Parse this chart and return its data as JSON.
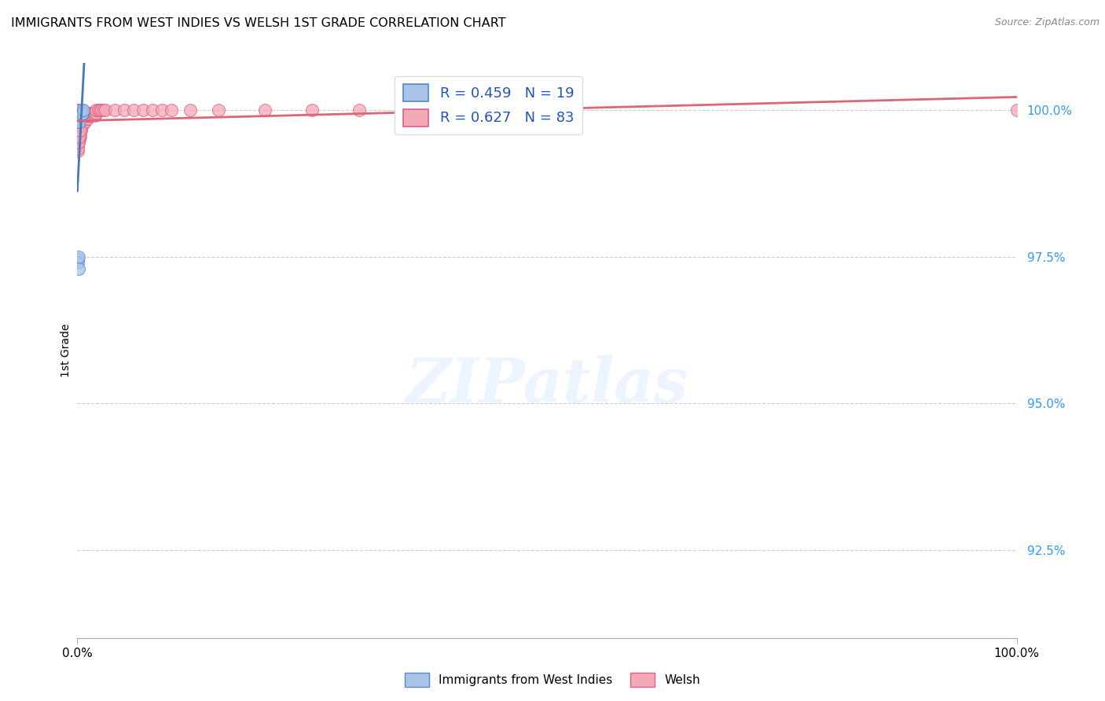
{
  "title": "IMMIGRANTS FROM WEST INDIES VS WELSH 1ST GRADE CORRELATION CHART",
  "source": "Source: ZipAtlas.com",
  "ylabel": "1st Grade",
  "ytick_vals": [
    100.0,
    97.5,
    95.0,
    92.5
  ],
  "ytick_labels": [
    "100.0%",
    "97.5%",
    "95.0%",
    "92.5%"
  ],
  "xlim": [
    0.0,
    100.0
  ],
  "ylim": [
    91.0,
    100.8
  ],
  "blue_R": 0.459,
  "blue_N": 19,
  "pink_R": 0.627,
  "pink_N": 83,
  "blue_fill": "#aac4e8",
  "pink_fill": "#f4a8b8",
  "blue_edge": "#5588cc",
  "pink_edge": "#e06080",
  "blue_line": "#4477bb",
  "pink_line": "#dd6677",
  "marker_size": 130,
  "blue_x": [
    0.05,
    0.08,
    0.12,
    0.15,
    0.18,
    0.2,
    0.22,
    0.25,
    0.3,
    0.35,
    0.4,
    0.45,
    0.5,
    0.55,
    0.6,
    0.05,
    0.08,
    0.1,
    0.12
  ],
  "blue_y": [
    99.85,
    99.9,
    99.8,
    99.85,
    99.9,
    100.0,
    99.85,
    99.8,
    99.9,
    99.95,
    99.9,
    99.95,
    99.9,
    99.95,
    100.0,
    97.45,
    97.4,
    97.5,
    97.3
  ],
  "pink_x": [
    0.05,
    0.08,
    0.1,
    0.12,
    0.15,
    0.18,
    0.2,
    0.22,
    0.25,
    0.28,
    0.3,
    0.35,
    0.4,
    0.45,
    0.5,
    0.55,
    0.6,
    0.65,
    0.7,
    0.75,
    0.8,
    0.85,
    0.9,
    0.95,
    1.0,
    1.05,
    1.1,
    1.15,
    1.2,
    1.25,
    1.3,
    1.35,
    1.4,
    1.45,
    1.5,
    1.55,
    1.6,
    1.65,
    1.7,
    1.75,
    1.8,
    1.85,
    1.9,
    1.95,
    2.0,
    2.2,
    2.4,
    2.6,
    2.8,
    3.0,
    0.05,
    0.07,
    0.09,
    0.11,
    0.13,
    0.15,
    0.17,
    0.2,
    0.25,
    0.3,
    0.08,
    0.1,
    0.12,
    0.15,
    0.18,
    0.22,
    0.28,
    0.35,
    0.42,
    0.5,
    4.0,
    5.0,
    6.0,
    7.0,
    8.0,
    9.0,
    10.0,
    12.0,
    15.0,
    20.0,
    25.0,
    30.0,
    100.0
  ],
  "pink_y": [
    99.5,
    99.55,
    99.6,
    99.45,
    99.7,
    99.55,
    99.65,
    99.5,
    99.6,
    99.7,
    99.55,
    99.65,
    99.7,
    99.75,
    99.8,
    99.75,
    99.8,
    99.85,
    99.8,
    99.85,
    99.8,
    99.85,
    99.9,
    99.85,
    99.9,
    99.85,
    99.9,
    99.9,
    99.9,
    99.95,
    99.9,
    99.95,
    99.95,
    99.9,
    99.95,
    99.9,
    99.95,
    99.95,
    99.95,
    99.95,
    99.95,
    99.95,
    99.9,
    99.95,
    100.0,
    100.0,
    100.0,
    100.0,
    100.0,
    100.0,
    99.3,
    99.4,
    99.35,
    99.45,
    99.5,
    99.55,
    99.45,
    99.6,
    99.55,
    99.65,
    100.0,
    100.0,
    100.0,
    100.0,
    100.0,
    100.0,
    100.0,
    100.0,
    100.0,
    100.0,
    100.0,
    100.0,
    100.0,
    100.0,
    100.0,
    100.0,
    100.0,
    100.0,
    100.0,
    100.0,
    100.0,
    100.0,
    100.0
  ]
}
